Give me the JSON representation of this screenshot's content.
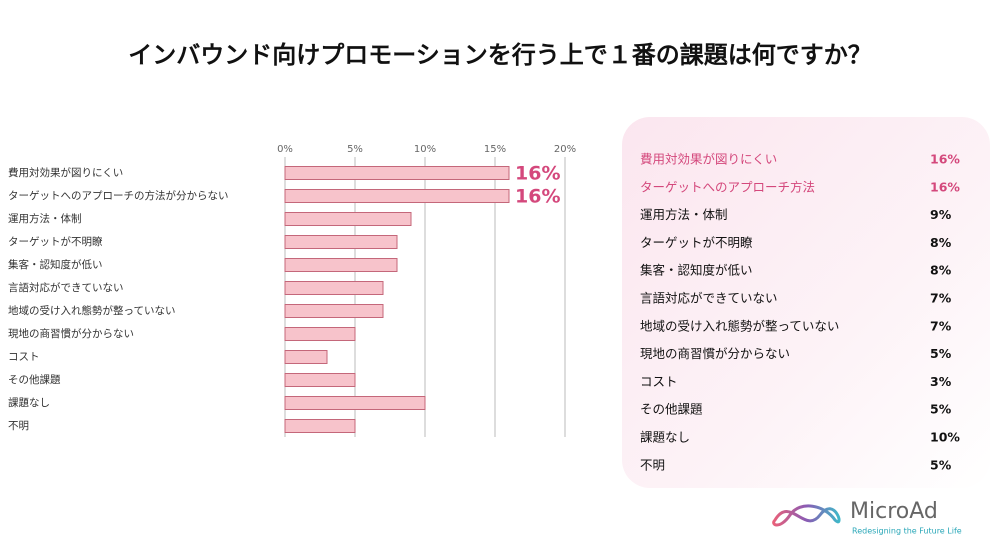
{
  "chart_data": {
    "type": "hbar",
    "title": "インバウンド向けプロモーションを行う上で１番の課題は何ですか？",
    "categories": [
      "費用対効果が図りにくい",
      "ターゲットへのアプローチの方法が分からない",
      "運用方法・体制",
      "ターゲットが不明瞭",
      "集客・認知度が低い",
      "言語対応ができていない",
      "地域の受け入れ態勢が整っていない",
      "現地の商習慣が分からない",
      "コスト",
      "その他課題",
      "課題なし",
      "不明"
    ],
    "values": [
      16,
      16,
      9,
      8,
      8,
      7,
      7,
      5,
      3,
      5,
      10,
      5
    ],
    "value_labels": [
      "16%",
      "16%",
      null,
      null,
      null,
      null,
      null,
      null,
      null,
      null,
      null,
      null
    ],
    "color": "#f7c3cb",
    "edge_color": "#c4677a",
    "label_color": "#d4487c",
    "xlim": [
      0,
      20
    ],
    "xticks": [
      {
        "value": 0,
        "label": "0%"
      },
      {
        "value": 5,
        "label": "5%"
      },
      {
        "value": 10,
        "label": "10%"
      },
      {
        "value": 15,
        "label": "15%"
      },
      {
        "value": 20,
        "label": "20%"
      }
    ],
    "grid": true
  },
  "table": {
    "highlight_rows": [
      0,
      1
    ],
    "highlight_color": "#d4487c",
    "rows": [
      [
        "費用対効果が図りにくい",
        "16%"
      ],
      [
        "ターゲットへのアプローチ方法",
        "16%"
      ],
      [
        "運用方法・体制",
        "9%"
      ],
      [
        "ターゲットが不明瞭",
        "8%"
      ],
      [
        "集客・認知度が低い",
        "8%"
      ],
      [
        "言語対応ができていない",
        "7%"
      ],
      [
        "地域の受け入れ態勢が整っていない",
        "7%"
      ],
      [
        "現地の商習慣が分からない",
        "5%"
      ],
      [
        "コスト",
        "3%"
      ],
      [
        "その他課題",
        "5%"
      ],
      [
        "課題なし",
        "10%"
      ],
      [
        "不明",
        "5%"
      ]
    ]
  },
  "logo": {
    "name": "MicroAd",
    "tagline": "Redesigning the Future Life"
  }
}
